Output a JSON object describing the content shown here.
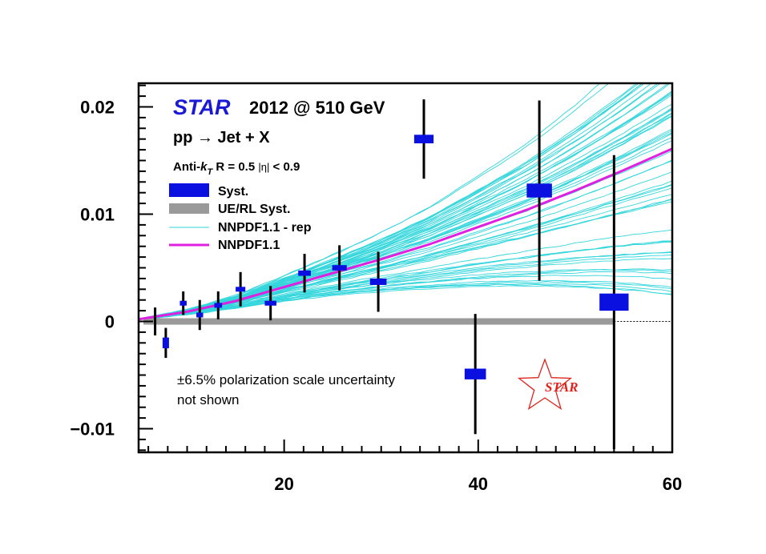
{
  "chart_data": {
    "type": "scatter",
    "title": "2012 @ 510 GeV",
    "title_prefix": "STAR",
    "process": "pp  → Jet + X",
    "cuts": "Anti-k_T R = 0.5  |η| < 0.9",
    "cuts_parts": {
      "a": "Anti-",
      "k": "k",
      "sub": "T",
      "b": " R = 0.5 ",
      "eta": "|η|",
      "c": " < 0.9"
    },
    "note": [
      "±6.5% polarization scale uncertainty",
      "not shown"
    ],
    "logo_text": "STAR",
    "xlim": [
      5,
      60
    ],
    "ylim": [
      -0.0122,
      0.0222
    ],
    "x_ticks": [
      20,
      40,
      60
    ],
    "y_ticks": [
      -0.01,
      0,
      0.01,
      0.02
    ],
    "x_tick_labels": [
      "20",
      "40",
      "60"
    ],
    "y_tick_labels": [
      "−0.01",
      "0",
      "0.01",
      "0.02"
    ],
    "legend": [
      {
        "label": "Syst.",
        "style": "box",
        "color": "#0a10e0"
      },
      {
        "label": "UE/RL Syst.",
        "style": "band",
        "color": "#9a9a9a"
      },
      {
        "label": "NNPDF1.1 - rep",
        "style": "thin-line",
        "color": "#33d6dc"
      },
      {
        "label": "NNPDF1.1",
        "style": "thick-line",
        "color": "#e020e0"
      }
    ],
    "colors": {
      "data": "#0a10e0",
      "stat_bar": "#000000",
      "ue_band": "#9a9a9a",
      "replicas": "#33d6dc",
      "central": "#e020e0",
      "logo": "#e0221b",
      "title_star": "#1a1ad6"
    },
    "points": [
      {
        "x": 6.7,
        "y": 0.0,
        "stat": 0.0013,
        "syst_w": 0.0,
        "syst_h": 0.0
      },
      {
        "x": 7.8,
        "y": -0.002,
        "stat": 0.0014,
        "syst_w": 0.6,
        "syst_h": 0.001
      },
      {
        "x": 9.6,
        "y": 0.0017,
        "stat": 0.0011,
        "syst_w": 0.7,
        "syst_h": 0.0003
      },
      {
        "x": 11.3,
        "y": 0.0006,
        "stat": 0.0014,
        "syst_w": 0.7,
        "syst_h": 0.0003
      },
      {
        "x": 13.2,
        "y": 0.0015,
        "stat": 0.0013,
        "syst_w": 0.8,
        "syst_h": 0.0003
      },
      {
        "x": 15.5,
        "y": 0.003,
        "stat": 0.0016,
        "syst_w": 1.0,
        "syst_h": 0.0004
      },
      {
        "x": 18.6,
        "y": 0.0017,
        "stat": 0.0016,
        "syst_w": 1.2,
        "syst_h": 0.0004
      },
      {
        "x": 22.1,
        "y": 0.0045,
        "stat": 0.0018,
        "syst_w": 1.3,
        "syst_h": 0.0005
      },
      {
        "x": 25.7,
        "y": 0.005,
        "stat": 0.0021,
        "syst_w": 1.5,
        "syst_h": 0.0005
      },
      {
        "x": 29.7,
        "y": 0.0037,
        "stat": 0.0028,
        "syst_w": 1.7,
        "syst_h": 0.0006
      },
      {
        "x": 34.4,
        "y": 0.017,
        "stat": 0.0037,
        "syst_w": 2.0,
        "syst_h": 0.0008
      },
      {
        "x": 39.7,
        "y": -0.0049,
        "stat": 0.0056,
        "syst_w": 2.2,
        "syst_h": 0.001
      },
      {
        "x": 46.3,
        "y": 0.0122,
        "stat": 0.0084,
        "syst_w": 2.6,
        "syst_h": 0.0013
      },
      {
        "x": 54.0,
        "y": 0.0018,
        "stat": 0.0137,
        "syst_w": 3.0,
        "syst_h": 0.0016
      }
    ],
    "ue_band": {
      "x_start": 5.5,
      "x_end": 54.0,
      "y_low": -0.0003,
      "y_high": 0.0003
    },
    "central_curve": {
      "x": [
        5,
        10,
        15,
        20,
        25,
        30,
        35,
        40,
        45,
        50,
        55,
        60
      ],
      "y": [
        0.0002,
        0.0009,
        0.0019,
        0.0032,
        0.0045,
        0.0058,
        0.0072,
        0.0088,
        0.0104,
        0.0122,
        0.0141,
        0.0161
      ]
    },
    "replicas": {
      "count": 60,
      "color": "#33d6dc"
    }
  }
}
